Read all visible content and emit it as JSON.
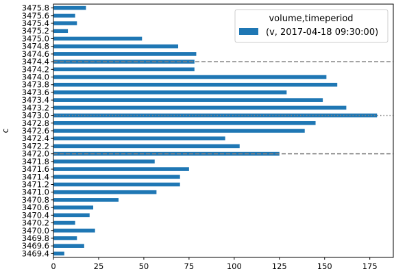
{
  "chart_data": {
    "type": "bar",
    "orientation": "horizontal",
    "ylabel": "c",
    "xlim": [
      0,
      188
    ],
    "xticks": [
      0,
      25,
      50,
      75,
      100,
      125,
      150,
      175
    ],
    "categories": [
      "3469.4",
      "3469.6",
      "3469.8",
      "3470.0",
      "3470.2",
      "3470.4",
      "3470.6",
      "3470.8",
      "3471.0",
      "3471.2",
      "3471.4",
      "3471.6",
      "3471.8",
      "3472.0",
      "3472.2",
      "3472.4",
      "3472.6",
      "3472.8",
      "3473.0",
      "3473.2",
      "3473.4",
      "3473.6",
      "3473.8",
      "3474.0",
      "3474.2",
      "3474.4",
      "3474.6",
      "3474.8",
      "3475.0",
      "3475.2",
      "3475.4",
      "3475.6",
      "3475.8"
    ],
    "series": [
      {
        "name": "(v, 2017-04-18 09:30:00)",
        "color": "#1f77b4",
        "values": [
          6,
          17,
          13,
          23,
          12,
          20,
          22,
          36,
          57,
          70,
          70,
          75,
          56,
          125,
          103,
          95,
          139,
          145,
          179,
          162,
          149,
          129,
          157,
          151,
          78,
          78,
          79,
          69,
          49,
          8,
          13,
          12,
          18
        ]
      }
    ],
    "legend": {
      "title": "volume,timeperiod",
      "placement": "top-right"
    },
    "reference_lines": [
      {
        "category": "3474.4",
        "style": "dashed",
        "color": "#7f7f7f"
      },
      {
        "category": "3473.0",
        "style": "dotted",
        "color": "#7f7f7f"
      },
      {
        "category": "3472.0",
        "style": "dashed",
        "color": "#7f7f7f"
      }
    ],
    "grid": false
  }
}
